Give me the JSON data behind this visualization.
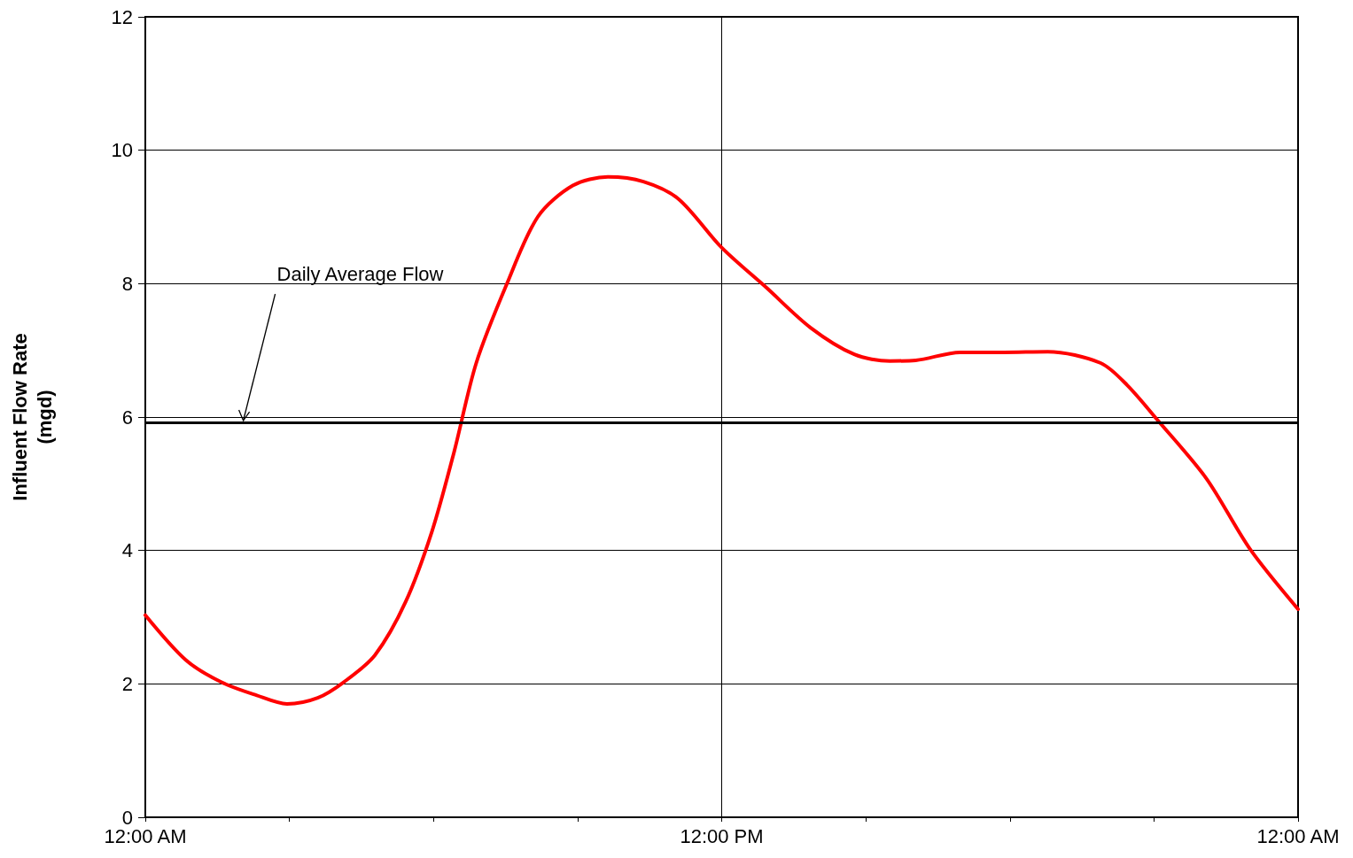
{
  "chart_data": {
    "type": "line",
    "ylabel": "Influent Flow Rate\n(mgd)",
    "x": [
      0,
      0.84,
      1.57,
      2.31,
      2.95,
      3.59,
      4.14,
      4.78,
      5.42,
      5.97,
      6.43,
      6.89,
      7.53,
      8.17,
      8.9,
      9.63,
      10.37,
      11.1,
      12,
      12.93,
      13.85,
      14.76,
      15.5,
      16.04,
      16.96,
      17.87,
      18.79,
      19.89,
      20.44,
      21.08,
      22.09,
      23,
      24
    ],
    "series": [
      {
        "color": "#ff0000",
        "values": [
          3.03,
          2.36,
          2.03,
          1.83,
          1.7,
          1.79,
          2.03,
          2.43,
          3.23,
          4.29,
          5.48,
          6.81,
          8.0,
          9.0,
          9.47,
          9.6,
          9.53,
          9.27,
          8.54,
          7.94,
          7.34,
          6.94,
          6.84,
          6.85,
          6.97,
          6.97,
          6.98,
          6.81,
          6.48,
          5.95,
          5.08,
          4.02,
          3.12
        ]
      }
    ],
    "xlim": [
      0,
      24
    ],
    "xticks": [
      {
        "value": 0,
        "label": "12:00 AM"
      },
      {
        "value": 3,
        "label": null
      },
      {
        "value": 6,
        "label": null
      },
      {
        "value": 9,
        "label": null
      },
      {
        "value": 12,
        "label": "12:00 PM"
      },
      {
        "value": 15,
        "label": null
      },
      {
        "value": 18,
        "label": null
      },
      {
        "value": 21,
        "label": null
      },
      {
        "value": 24,
        "label": "12:00 AM"
      }
    ],
    "ylim": [
      0,
      12
    ],
    "yticks": [
      0,
      2,
      4,
      6,
      8,
      10,
      12
    ],
    "grid": true,
    "marker": "none",
    "line_style": "solid",
    "ref_lines": [
      {
        "axis": "y",
        "value": 5.92,
        "label": "Daily Average Flow",
        "color": "#000000"
      }
    ]
  }
}
